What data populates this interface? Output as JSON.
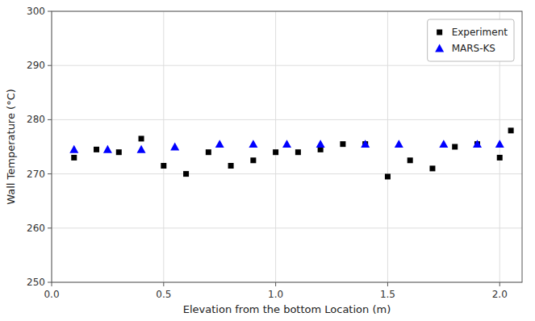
{
  "chart_data": {
    "type": "scatter",
    "xlabel": "Elevation from the bottom Location (m)",
    "ylabel": "Wall Temperature (°C)",
    "series": [
      {
        "name": "Experiment",
        "color": "black",
        "marker": "square",
        "x": [
          0.1,
          0.2,
          0.3,
          0.4,
          0.5,
          0.6,
          0.7,
          0.8,
          0.9,
          1.0,
          1.1,
          1.2,
          1.3,
          1.4,
          1.5,
          1.6,
          1.7,
          1.8,
          1.9,
          2.0,
          2.05
        ],
        "values": [
          273.0,
          274.5,
          274.0,
          276.5,
          271.5,
          270.0,
          274.0,
          271.5,
          272.5,
          274.0,
          274.0,
          274.5,
          275.5,
          275.5,
          269.5,
          272.5,
          271.0,
          275.0,
          275.5,
          273.0,
          278.0
        ]
      },
      {
        "name": "MARS-KS",
        "color": "blue",
        "marker": "triangle",
        "x": [
          0.1,
          0.25,
          0.4,
          0.55,
          0.75,
          0.9,
          1.05,
          1.2,
          1.4,
          1.55,
          1.75,
          1.9,
          2.0
        ],
        "values": [
          274.5,
          274.5,
          274.5,
          275.0,
          275.5,
          275.5,
          275.5,
          275.5,
          275.5,
          275.5,
          275.5,
          275.5,
          275.5
        ]
      }
    ],
    "xlim": [
      0.0,
      2.1
    ],
    "ylim": [
      250,
      300
    ],
    "xticks": [
      {
        "value": 0.0,
        "label": "0.0"
      },
      0.5,
      {
        "value": 1.0,
        "label": "1.0"
      },
      1.5,
      {
        "value": 2.0,
        "label": "2.0"
      }
    ],
    "yticks": [
      250,
      260,
      270,
      280,
      290,
      300
    ],
    "grid": true,
    "legend": "upper right"
  }
}
